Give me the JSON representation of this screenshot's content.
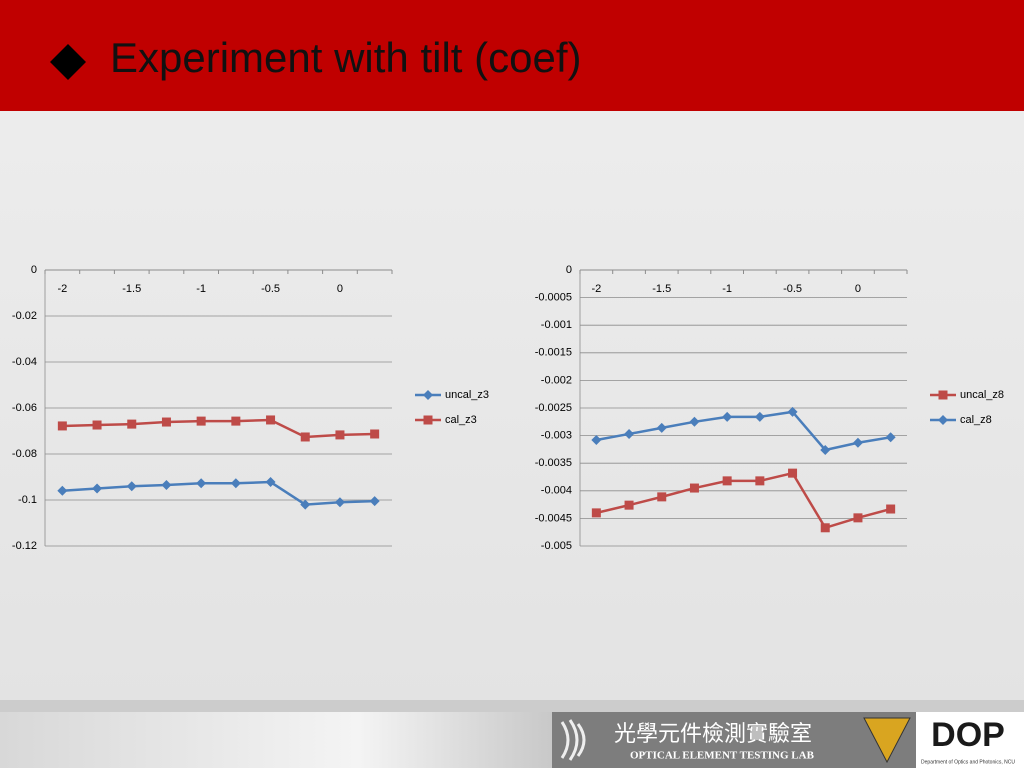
{
  "slide": {
    "title": "Experiment with tilt (coef)",
    "footer": {
      "lab_cn": "光學元件檢測實驗室",
      "lab_en": "OPTICAL ELEMENT TESTING LAB",
      "logo": "DOP",
      "department": "Department of Optics and Photonics, NCU"
    }
  },
  "chart_data": [
    {
      "type": "line",
      "categories": [
        -2,
        null,
        -1.5,
        null,
        -1,
        null,
        -0.5,
        null,
        0,
        null
      ],
      "ylim": [
        -0.12,
        0
      ],
      "yticks": [
        0,
        -0.02,
        -0.04,
        -0.06,
        -0.08,
        -0.1,
        -0.12
      ],
      "grid": true,
      "legend": "right",
      "series": [
        {
          "name": "uncal_z3",
          "color": "#4a7ebb",
          "marker": "diamond",
          "values": [
            -0.096,
            -0.095,
            -0.094,
            -0.0935,
            -0.0927,
            -0.0927,
            -0.0922,
            -0.102,
            -0.101,
            -0.1005
          ]
        },
        {
          "name": "cal_z3",
          "color": "#be4b48",
          "marker": "square",
          "values": [
            -0.0678,
            -0.0674,
            -0.067,
            -0.0661,
            -0.0657,
            -0.0657,
            -0.0652,
            -0.0726,
            -0.0717,
            -0.0713
          ]
        }
      ]
    },
    {
      "type": "line",
      "categories": [
        -2,
        null,
        -1.5,
        null,
        -1,
        null,
        -0.5,
        null,
        0,
        null
      ],
      "ylim": [
        -0.005,
        0
      ],
      "yticks": [
        0,
        -0.0005,
        -0.001,
        -0.0015,
        -0.002,
        -0.0025,
        -0.003,
        -0.0035,
        -0.004,
        -0.0045,
        -0.005
      ],
      "grid": true,
      "legend": "right",
      "series": [
        {
          "name": "uncal_z8",
          "color": "#be4b48",
          "marker": "square",
          "values": [
            -0.0044,
            -0.00426,
            -0.00411,
            -0.00395,
            -0.00382,
            -0.00382,
            -0.00368,
            -0.00467,
            -0.00449,
            -0.00433
          ]
        },
        {
          "name": "cal_z8",
          "color": "#4a7ebb",
          "marker": "diamond",
          "values": [
            -0.00308,
            -0.00297,
            -0.00286,
            -0.00275,
            -0.00266,
            -0.00266,
            -0.00257,
            -0.00326,
            -0.00313,
            -0.00303
          ]
        }
      ]
    }
  ]
}
